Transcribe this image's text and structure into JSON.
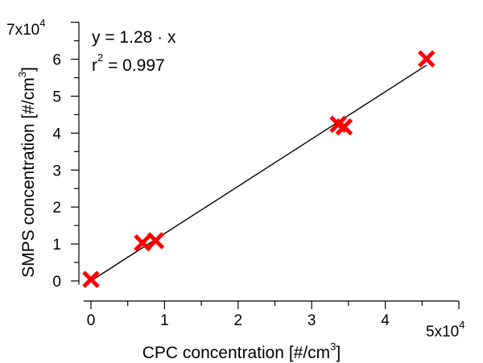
{
  "chart_data": {
    "type": "scatter",
    "title": "",
    "xlabel": "CPC concentration [#/cm",
    "xlabel_sup": "3",
    "xlabel_tail": "]",
    "ylabel": "SMPS concentration [#/cm",
    "ylabel_sup": "3",
    "ylabel_tail": "]",
    "xlim": [
      0,
      50000
    ],
    "ylim": [
      0,
      70000
    ],
    "x_ticks": [
      0,
      10000,
      20000,
      30000,
      40000
    ],
    "x_tick_labels": [
      "0",
      "1",
      "2",
      "3",
      "4"
    ],
    "y_ticks": [
      0,
      10000,
      20000,
      30000,
      40000,
      50000,
      60000
    ],
    "y_tick_labels": [
      "0",
      "1",
      "2",
      "3",
      "4",
      "5",
      "6"
    ],
    "x_multiplier": {
      "base": "5x10",
      "exp": "4"
    },
    "y_multiplier": {
      "base": "7x10",
      "exp": "4"
    },
    "series": [
      {
        "marker": "x",
        "color": "#ff0000",
        "points": [
          {
            "x": 0,
            "y": 400
          },
          {
            "x": 7000,
            "y": 10300
          },
          {
            "x": 8800,
            "y": 10900
          },
          {
            "x": 33600,
            "y": 42400
          },
          {
            "x": 34400,
            "y": 41700
          },
          {
            "x": 45600,
            "y": 60100
          }
        ]
      }
    ],
    "fit": {
      "slope": 1.28,
      "color": "#000000",
      "x_range": [
        0,
        45600
      ],
      "equation": "y = 1.28 · x",
      "r2_prefix": "r",
      "r2_sup": "2",
      "r2_value": " = 0.997"
    },
    "grid": false,
    "legend": "none"
  }
}
